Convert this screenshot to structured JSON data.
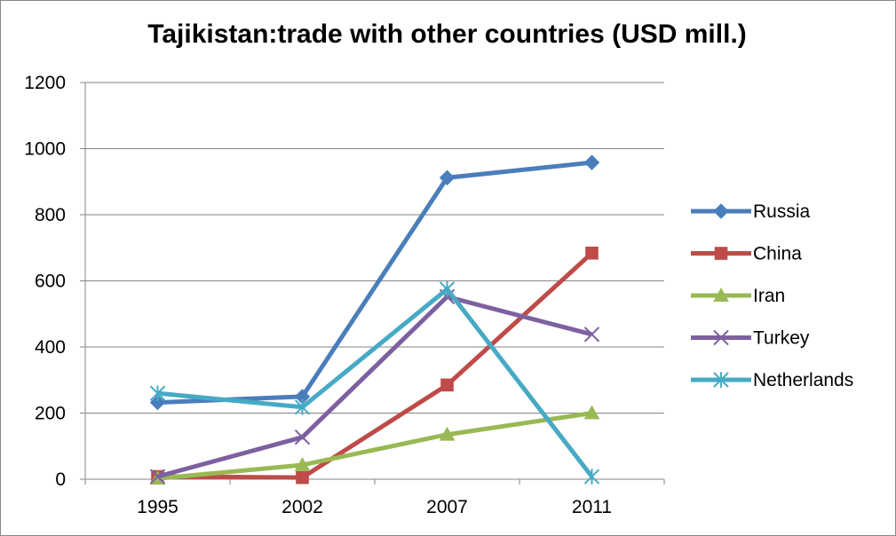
{
  "chart_data": {
    "type": "line",
    "title": "Tajikistan:trade with other countries (USD mill.)",
    "xlabel": "",
    "ylabel": "",
    "categories": [
      "1995",
      "2002",
      "2007",
      "2011"
    ],
    "ylim": [
      0,
      1200
    ],
    "yticks": [
      "0",
      "200",
      "400",
      "600",
      "800",
      "1000",
      "1200"
    ],
    "grid": true,
    "legend_position": "right",
    "series": [
      {
        "name": "Russia",
        "values": [
          232,
          250,
          912,
          958
        ],
        "color": "#4A7EBB",
        "marker": "diamond"
      },
      {
        "name": "China",
        "values": [
          8,
          5,
          285,
          684
        ],
        "color": "#BE4B48",
        "marker": "square"
      },
      {
        "name": "Iran",
        "values": [
          2,
          43,
          135,
          200
        ],
        "color": "#98B954",
        "marker": "triangle"
      },
      {
        "name": "Turkey",
        "values": [
          8,
          127,
          552,
          438
        ],
        "color": "#7D60A0",
        "marker": "x"
      },
      {
        "name": "Netherlands",
        "values": [
          260,
          218,
          575,
          8
        ],
        "color": "#46AAC5",
        "marker": "star"
      }
    ]
  }
}
